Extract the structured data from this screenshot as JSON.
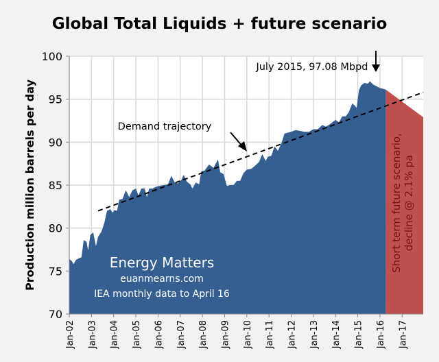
{
  "chart_data": {
    "type": "area",
    "title": "Global Total Liquids + future scenario",
    "ylabel": "Production million barrels per day",
    "xlabel": "",
    "ylim": [
      70,
      100
    ],
    "yticks": [
      70,
      75,
      80,
      85,
      90,
      95,
      100
    ],
    "xlim": [
      2002,
      2017.95
    ],
    "xtick_labels": [
      "Jan-02",
      "Jan-03",
      "Jan-04",
      "Jan-05",
      "Jan-06",
      "Jan-07",
      "Jan-08",
      "Jan-09",
      "Jan-10",
      "Jan-11",
      "Jan-12",
      "Jan-13",
      "Jan-14",
      "Jan-15",
      "Jan-16",
      "Jan-17"
    ],
    "grid": true,
    "series": [
      {
        "kind": "historical",
        "color": "#365f91",
        "x": [
          2002.0,
          2002.1,
          2002.2,
          2002.3,
          2002.45,
          2002.55,
          2002.65,
          2002.78,
          2002.85,
          2002.95,
          2003.08,
          2003.2,
          2003.3,
          2003.45,
          2003.58,
          2003.7,
          2003.85,
          2003.95,
          2004.05,
          2004.15,
          2004.25,
          2004.4,
          2004.55,
          2004.7,
          2004.85,
          2005.0,
          2005.12,
          2005.25,
          2005.4,
          2005.5,
          2005.6,
          2005.75,
          2005.9,
          2006.05,
          2006.25,
          2006.45,
          2006.6,
          2006.75,
          2006.9,
          2007.05,
          2007.15,
          2007.3,
          2007.45,
          2007.55,
          2007.7,
          2007.85,
          2007.95,
          2008.1,
          2008.3,
          2008.5,
          2008.7,
          2008.8,
          2008.95,
          2009.1,
          2009.25,
          2009.4,
          2009.55,
          2009.7,
          2009.85,
          2010.0,
          2010.2,
          2010.35,
          2010.55,
          2010.7,
          2010.85,
          2010.95,
          2011.1,
          2011.25,
          2011.4,
          2011.55,
          2011.7,
          2011.85,
          2012.0,
          2012.2,
          2012.4,
          2012.6,
          2012.8,
          2013.0,
          2013.2,
          2013.4,
          2013.55,
          2013.7,
          2013.85,
          2014.0,
          2014.15,
          2014.3,
          2014.45,
          2014.6,
          2014.75,
          2014.85,
          2014.95,
          2015.05,
          2015.15,
          2015.3,
          2015.45,
          2015.55,
          2015.7,
          2015.85,
          2016.0,
          2016.15,
          2016.27
        ],
        "values": [
          76.4,
          76.2,
          75.8,
          76.3,
          76.5,
          76.6,
          78.6,
          78.4,
          77.4,
          79.2,
          79.5,
          77.9,
          79.0,
          79.6,
          80.6,
          82.0,
          82.2,
          81.8,
          82.1,
          82.0,
          83.3,
          83.4,
          84.4,
          83.6,
          84.4,
          84.6,
          83.8,
          84.6,
          84.6,
          83.6,
          84.6,
          84.6,
          84.8,
          84.9,
          85.0,
          85.1,
          86.1,
          85.3,
          85.2,
          85.6,
          86.2,
          85.4,
          85.1,
          84.6,
          85.3,
          85.1,
          86.6,
          86.7,
          87.4,
          87.0,
          88.0,
          86.5,
          86.3,
          84.9,
          85.0,
          85.0,
          85.5,
          85.5,
          86.4,
          86.8,
          86.9,
          87.2,
          87.7,
          88.6,
          87.8,
          88.3,
          88.4,
          89.5,
          89.0,
          89.8,
          91.0,
          91.1,
          91.2,
          91.4,
          91.3,
          91.2,
          91.2,
          91.5,
          91.5,
          92.0,
          91.8,
          92.0,
          92.3,
          92.6,
          92.3,
          93.0,
          93.0,
          93.5,
          94.5,
          94.3,
          94.0,
          96.0,
          96.6,
          96.9,
          96.8,
          97.08,
          96.7,
          96.5,
          96.3,
          96.2,
          96.1
        ]
      },
      {
        "kind": "future-scenario",
        "color": "#c0504d",
        "x": [
          2016.27,
          2017.95
        ],
        "values": [
          96.1,
          92.9
        ]
      }
    ],
    "trend_line": {
      "label": "Demand trajectory",
      "style": "dashed",
      "x": [
        2003.3,
        2017.95
      ],
      "values": [
        82.0,
        95.8
      ]
    },
    "annotations": {
      "peak": "July 2015, 97.08 Mbpd",
      "demand": "Demand trajectory",
      "future_line1": "Short term future scenario,",
      "future_line2": "decline @ 2.1% pa",
      "watermark_title": "Energy Matters",
      "watermark_site": "euanmearns.com",
      "watermark_source": "IEA monthly data to April 16"
    }
  }
}
